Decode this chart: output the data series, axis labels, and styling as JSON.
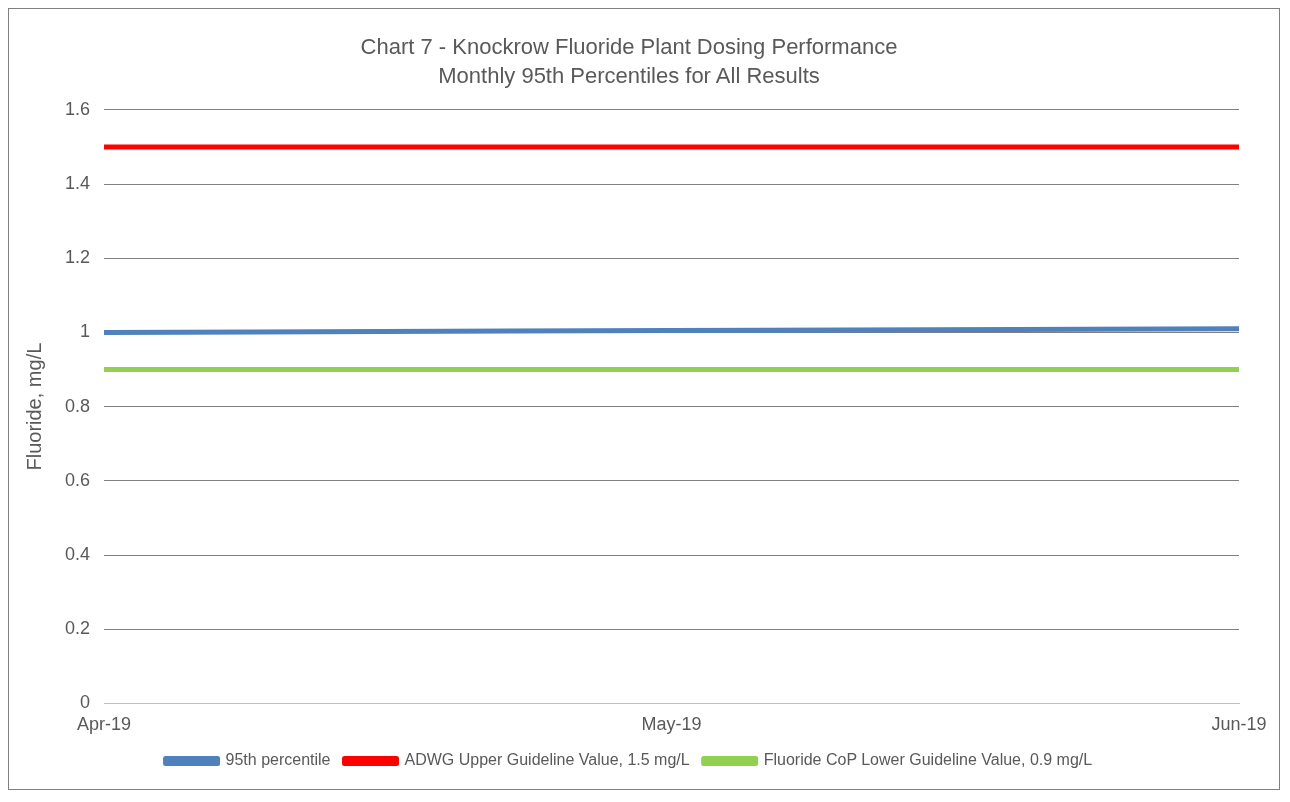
{
  "chart_data": {
    "type": "line",
    "title": "Chart 7 - Knockrow Fluoride Plant Dosing Performance",
    "subtitle": "Monthly 95th Percentiles for All Results",
    "ylabel": "Fluoride, mg/L",
    "categories": [
      "Apr-19",
      "May-19",
      "Jun-19"
    ],
    "series": [
      {
        "name": "95th percentile",
        "color": "#4f81bd",
        "values": [
          1,
          1.005,
          1.01
        ]
      },
      {
        "name": "ADWG Upper Guideline Value, 1.5 mg/L",
        "color": "#ff0000",
        "values": [
          1.5,
          1.5,
          1.5
        ]
      },
      {
        "name": "Fluoride CoP Lower Guideline Value, 0.9 mg/L",
        "color": "#92d050",
        "values": [
          0.9,
          0.9,
          0.9
        ]
      }
    ],
    "ylim": [
      0,
      1.6
    ],
    "yticks": [
      0,
      0.2,
      0.4,
      0.6,
      0.8,
      1,
      1.2,
      1.4,
      1.6
    ],
    "grid": "y",
    "legend": "bottom",
    "marker": "none",
    "line_style": "solid"
  }
}
